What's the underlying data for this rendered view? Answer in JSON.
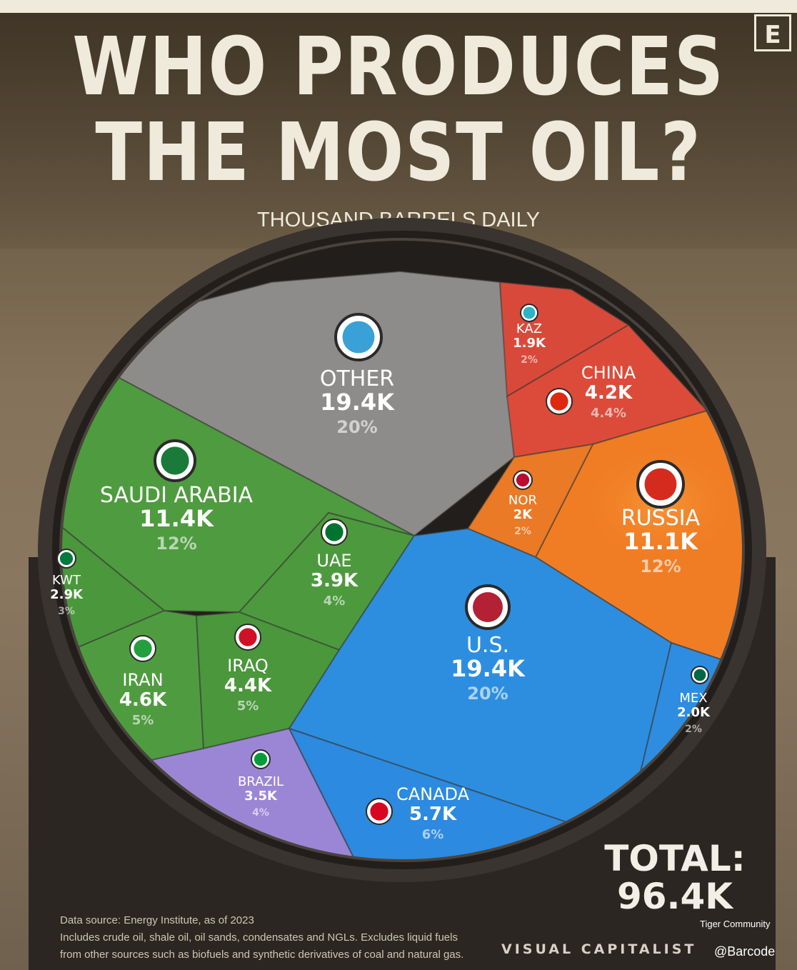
{
  "header": {
    "title_line1": "WHO PRODUCES",
    "title_line2": "THE MOST OIL?",
    "subtitle": "THOUSAND BARRELS DAILY",
    "logo_letter": "E"
  },
  "chart_data": {
    "type": "voronoi-treemap",
    "unit": "THOUSAND BARRELS DAILY",
    "items": [
      {
        "name": "OTHER",
        "value_label": "19.4K",
        "share_label": "20%",
        "value": 19.4,
        "share": 20,
        "color": "#8e8c8a",
        "icon": "globe-icon"
      },
      {
        "name": "KAZ",
        "value_label": "1.9K",
        "share_label": "2%",
        "value": 1.9,
        "share": 2,
        "color": "#d9493a",
        "icon": "kazakhstan-flag-icon"
      },
      {
        "name": "CHINA",
        "value_label": "4.2K",
        "share_label": "4.4%",
        "value": 4.2,
        "share": 4.4,
        "color": "#dc4b3a",
        "icon": "china-flag-icon"
      },
      {
        "name": "RUSSIA",
        "value_label": "11.1K",
        "share_label": "12%",
        "value": 11.1,
        "share": 12,
        "color": "#f07d24",
        "icon": "russia-flag-icon"
      },
      {
        "name": "NOR",
        "value_label": "2K",
        "share_label": "2%",
        "value": 2,
        "share": 2,
        "color": "#ea7a26",
        "icon": "norway-flag-icon"
      },
      {
        "name": "SAUDI ARABIA",
        "value_label": "11.4K",
        "share_label": "12%",
        "value": 11.4,
        "share": 12,
        "color": "#4f9b3f",
        "icon": "saudi-arabia-flag-icon"
      },
      {
        "name": "UAE",
        "value_label": "3.9K",
        "share_label": "4%",
        "value": 3.9,
        "share": 4,
        "color": "#4c9a3d",
        "icon": "uae-flag-icon"
      },
      {
        "name": "KWT",
        "value_label": "2.9K",
        "share_label": "3%",
        "value": 2.9,
        "share": 3,
        "color": "#4b973c",
        "icon": "kuwait-flag-icon"
      },
      {
        "name": "IRAN",
        "value_label": "4.6K",
        "share_label": "5%",
        "value": 4.6,
        "share": 5,
        "color": "#4f9c40",
        "icon": "iran-flag-icon"
      },
      {
        "name": "IRAQ",
        "value_label": "4.4K",
        "share_label": "5%",
        "value": 4.4,
        "share": 5,
        "color": "#4a973c",
        "icon": "iraq-flag-icon"
      },
      {
        "name": "U.S.",
        "value_label": "19.4K",
        "share_label": "20%",
        "value": 19.4,
        "share": 20,
        "color": "#2d8ee0",
        "icon": "usa-flag-icon"
      },
      {
        "name": "MEX",
        "value_label": "2.0K",
        "share_label": "2%",
        "value": 2.0,
        "share": 2,
        "color": "#2e8de0",
        "icon": "mexico-flag-icon"
      },
      {
        "name": "BRAZIL",
        "value_label": "3.5K",
        "share_label": "4%",
        "value": 3.5,
        "share": 4,
        "color": "#9b86d6",
        "icon": "brazil-flag-icon"
      },
      {
        "name": "CANADA",
        "value_label": "5.7K",
        "share_label": "6%",
        "value": 5.7,
        "share": 6,
        "color": "#2c8ae0",
        "icon": "canada-flag-icon"
      }
    ],
    "total_label": "TOTAL:",
    "total_value": "96.4K"
  },
  "footer": {
    "source": "Data source: Energy Institute, as of 2023",
    "note_line1": "Includes crude oil, shale oil, oil sands, condensates and NGLs. Excludes liquid fuels",
    "note_line2": "from other sources such as biofuels and synthetic derivatives of coal and natural gas.",
    "brand": "VISUAL CAPITALIST",
    "watermark_community": "Tiger Community",
    "watermark_handle": "@Barcode"
  }
}
